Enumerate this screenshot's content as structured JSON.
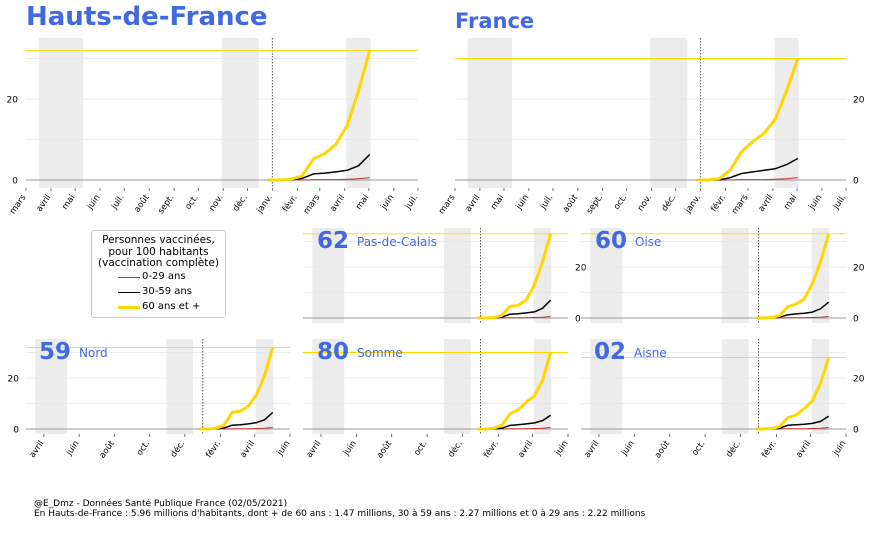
{
  "footer": {
    "line1": "@E_Dmz - Données Santé Publique France (02/05/2021)",
    "line2": "En Hauts-de-France : 5.96 millions d'habitants, dont + de 60 ans : 1.47 millions, 30 à 59 ans : 2.27 millions et 0 à 29 ans : 2.22 millions"
  },
  "legend": {
    "title_lines": [
      "Personnes vaccinées,",
      "pour 100 habitants",
      "(vaccination complète)"
    ],
    "entries": [
      "0-29 ans",
      "30-59 ans",
      "60 ans et +"
    ]
  },
  "colors": {
    "title": "#4169e1",
    "age_0_29": "#c0392b",
    "age_30_59": "#000000",
    "age_60_plus": "#ffd700",
    "shade": "#ececec",
    "grid": "#e6e6e6"
  },
  "chart_data": [
    {
      "type": "line",
      "panel": "hauts-de-france",
      "title": "Hauts-de-France",
      "x_ticks": [
        "mars",
        "avril",
        "mai",
        "juin",
        "juil.",
        "août",
        "sept.",
        "oct.",
        "nov.",
        "déc.",
        "janv.",
        "févr.",
        "mars",
        "avril",
        "mai",
        "juin",
        "juil."
      ],
      "y_ticks": [
        0,
        20
      ],
      "ylim": [
        -2,
        35
      ],
      "xlim": [
        "2020-03-01",
        "2021-07-01"
      ],
      "grid": true,
      "axis": "right-hidden",
      "dates": [
        "2020-12-27",
        "2021-01-10",
        "2021-01-24",
        "2021-02-07",
        "2021-02-21",
        "2021-03-07",
        "2021-03-21",
        "2021-04-04",
        "2021-04-18",
        "2021-05-02"
      ],
      "series": [
        {
          "name": "0-29 ans",
          "values": [
            0,
            0,
            0,
            0,
            0.1,
            0.1,
            0.1,
            0.2,
            0.3,
            0.6
          ]
        },
        {
          "name": "30-59 ans",
          "values": [
            0,
            0,
            0,
            0.4,
            1.5,
            1.7,
            2.0,
            2.4,
            3.5,
            6.3
          ]
        },
        {
          "name": "60 ans et +",
          "values": [
            0,
            0,
            0.2,
            1.0,
            5.2,
            6.5,
            8.8,
            13.5,
            22,
            32
          ]
        }
      ],
      "reference_y": 32,
      "marker_date": "2021-01-01",
      "shaded": [
        [
          "2020-03-17",
          "2020-05-11"
        ],
        [
          "2020-10-30",
          "2020-12-15"
        ],
        [
          "2021-04-03",
          "2021-05-03"
        ]
      ]
    },
    {
      "type": "line",
      "panel": "france",
      "title": "France",
      "x_ticks": [
        "mars",
        "avril",
        "mai",
        "juin",
        "juil.",
        "août",
        "sept.",
        "oct.",
        "nov.",
        "déc.",
        "janv.",
        "févr.",
        "mars",
        "avril",
        "mai",
        "juin",
        "juil."
      ],
      "y_ticks": [
        0,
        20
      ],
      "ylim": [
        -2,
        35
      ],
      "xlim": [
        "2020-03-01",
        "2021-07-01"
      ],
      "grid": true,
      "axis": "right",
      "dates": [
        "2020-12-27",
        "2021-01-10",
        "2021-01-24",
        "2021-02-07",
        "2021-02-21",
        "2021-03-07",
        "2021-03-21",
        "2021-04-04",
        "2021-04-18",
        "2021-05-02"
      ],
      "series": [
        {
          "name": "0-29 ans",
          "values": [
            0,
            0,
            0,
            0,
            0.1,
            0.1,
            0.1,
            0.2,
            0.3,
            0.6
          ]
        },
        {
          "name": "30-59 ans",
          "values": [
            0,
            0,
            0,
            0.6,
            1.6,
            2.0,
            2.4,
            2.8,
            3.8,
            5.3
          ]
        },
        {
          "name": "60 ans et +",
          "values": [
            0,
            0,
            0.3,
            2.5,
            7.0,
            9.5,
            11.5,
            15.0,
            22,
            30
          ]
        }
      ],
      "reference_y": 30,
      "marker_date": "2021-01-01",
      "shaded": [
        [
          "2020-03-17",
          "2020-05-11"
        ],
        [
          "2020-10-30",
          "2020-12-15"
        ],
        [
          "2021-04-03",
          "2021-05-03"
        ]
      ]
    },
    {
      "type": "line",
      "panel": "dep-62",
      "number": "62",
      "name": "Pas-de-Calais",
      "x_ticks": [],
      "y_ticks": [
        0,
        20
      ],
      "ylim": [
        -2,
        35
      ],
      "xlim": [
        "2020-03-01",
        "2021-06-01"
      ],
      "grid": true,
      "axis": "right",
      "dates": [
        "2020-12-27",
        "2021-01-10",
        "2021-01-24",
        "2021-02-07",
        "2021-02-21",
        "2021-03-07",
        "2021-03-21",
        "2021-04-04",
        "2021-04-18",
        "2021-05-02"
      ],
      "series": [
        {
          "name": "0-29 ans",
          "values": [
            0,
            0,
            0,
            0,
            0.1,
            0.1,
            0.1,
            0.2,
            0.3,
            0.6
          ]
        },
        {
          "name": "30-59 ans",
          "values": [
            0,
            0,
            0,
            0.3,
            1.5,
            1.7,
            2.0,
            2.4,
            3.8,
            7.0
          ]
        },
        {
          "name": "60 ans et +",
          "values": [
            0,
            0,
            0.2,
            1.0,
            4.5,
            5.0,
            7.0,
            13.0,
            22,
            33
          ]
        }
      ],
      "reference_y": 33,
      "marker_date": "2021-01-01",
      "shaded": [
        [
          "2020-03-17",
          "2020-05-11"
        ],
        [
          "2020-10-30",
          "2020-12-15"
        ],
        [
          "2021-04-03",
          "2021-05-03"
        ]
      ]
    },
    {
      "type": "line",
      "panel": "dep-60",
      "number": "60",
      "name": "Oise",
      "x_ticks": [],
      "y_ticks": [
        0,
        20
      ],
      "ylim": [
        -2,
        35
      ],
      "xlim": [
        "2020-03-01",
        "2021-06-01"
      ],
      "grid": true,
      "axis": "right",
      "dates": [
        "2020-12-27",
        "2021-01-10",
        "2021-01-24",
        "2021-02-07",
        "2021-02-21",
        "2021-03-07",
        "2021-03-21",
        "2021-04-04",
        "2021-04-18",
        "2021-05-02"
      ],
      "series": [
        {
          "name": "0-29 ans",
          "values": [
            0,
            0,
            0,
            0,
            0.1,
            0.1,
            0.1,
            0.2,
            0.3,
            0.6
          ]
        },
        {
          "name": "30-59 ans",
          "values": [
            0,
            0,
            0,
            0.3,
            1.3,
            1.6,
            1.9,
            2.3,
            3.6,
            6.2
          ]
        },
        {
          "name": "60 ans et +",
          "values": [
            0,
            0,
            0.2,
            1.0,
            4.5,
            5.5,
            7.5,
            13.5,
            22,
            33
          ]
        }
      ],
      "reference_y": 33,
      "marker_date": "2021-01-01",
      "shaded": [
        [
          "2020-03-17",
          "2020-05-11"
        ],
        [
          "2020-10-30",
          "2020-12-15"
        ],
        [
          "2021-04-03",
          "2021-05-03"
        ]
      ]
    },
    {
      "type": "line",
      "panel": "dep-59",
      "number": "59",
      "name": "Nord",
      "x_ticks": [
        "avril",
        "juin",
        "août",
        "oct.",
        "déc.",
        "févr.",
        "avril",
        "juin"
      ],
      "y_ticks": [
        0,
        20
      ],
      "ylim": [
        -2,
        35
      ],
      "xlim": [
        "2020-03-01",
        "2021-06-01"
      ],
      "grid": true,
      "axis": "left",
      "dates": [
        "2020-12-27",
        "2021-01-10",
        "2021-01-24",
        "2021-02-07",
        "2021-02-21",
        "2021-03-07",
        "2021-03-21",
        "2021-04-04",
        "2021-04-18",
        "2021-05-02"
      ],
      "series": [
        {
          "name": "0-29 ans",
          "values": [
            0,
            0,
            0,
            0,
            0.1,
            0.1,
            0.1,
            0.2,
            0.3,
            0.6
          ]
        },
        {
          "name": "30-59 ans",
          "values": [
            0,
            0,
            0,
            0.4,
            1.5,
            1.7,
            2.0,
            2.5,
            3.6,
            6.5
          ]
        },
        {
          "name": "60 ans et +",
          "values": [
            0,
            0,
            0.3,
            1.5,
            6.5,
            7.0,
            9.0,
            13.5,
            21,
            32
          ]
        }
      ],
      "reference_y": 32,
      "marker_date": "2021-01-01",
      "shaded": [
        [
          "2020-03-17",
          "2020-05-11"
        ],
        [
          "2020-10-30",
          "2020-12-15"
        ],
        [
          "2021-04-03",
          "2021-05-03"
        ]
      ]
    },
    {
      "type": "line",
      "panel": "dep-80",
      "number": "80",
      "name": "Somme",
      "x_ticks": [
        "avril",
        "juin",
        "août",
        "oct.",
        "déc.",
        "févr.",
        "avril",
        "juin"
      ],
      "y_ticks": [
        0,
        20
      ],
      "ylim": [
        -2,
        35
      ],
      "xlim": [
        "2020-03-01",
        "2021-06-01"
      ],
      "grid": true,
      "axis": "none",
      "dates": [
        "2020-12-27",
        "2021-01-10",
        "2021-01-24",
        "2021-02-07",
        "2021-02-21",
        "2021-03-07",
        "2021-03-21",
        "2021-04-04",
        "2021-04-18",
        "2021-05-02"
      ],
      "series": [
        {
          "name": "0-29 ans",
          "values": [
            0,
            0,
            0,
            0,
            0.1,
            0.1,
            0.1,
            0.2,
            0.3,
            0.6
          ]
        },
        {
          "name": "30-59 ans",
          "values": [
            0,
            0,
            0,
            0.3,
            1.4,
            1.7,
            2.0,
            2.4,
            3.3,
            5.4
          ]
        },
        {
          "name": "60 ans et +",
          "values": [
            0,
            0,
            0.3,
            1.5,
            6.0,
            7.5,
            10.5,
            13.0,
            19,
            30
          ]
        }
      ],
      "reference_y": 30,
      "marker_date": "2021-01-01",
      "shaded": [
        [
          "2020-03-17",
          "2020-05-11"
        ],
        [
          "2020-10-30",
          "2020-12-15"
        ],
        [
          "2021-04-03",
          "2021-05-03"
        ]
      ]
    },
    {
      "type": "line",
      "panel": "dep-02",
      "number": "02",
      "name": "Aisne",
      "x_ticks": [
        "avril",
        "juin",
        "août",
        "oct.",
        "déc.",
        "févr.",
        "avril",
        "juin"
      ],
      "y_ticks": [
        0,
        20
      ],
      "ylim": [
        -2,
        35
      ],
      "xlim": [
        "2020-03-01",
        "2021-06-01"
      ],
      "grid": true,
      "axis": "right",
      "dates": [
        "2020-12-27",
        "2021-01-10",
        "2021-01-24",
        "2021-02-07",
        "2021-02-21",
        "2021-03-07",
        "2021-03-21",
        "2021-04-04",
        "2021-04-18",
        "2021-05-02"
      ],
      "series": [
        {
          "name": "0-29 ans",
          "values": [
            0,
            0,
            0,
            0,
            0.1,
            0.1,
            0.1,
            0.2,
            0.3,
            0.6
          ]
        },
        {
          "name": "30-59 ans",
          "values": [
            0,
            0,
            0,
            0.3,
            1.5,
            1.7,
            1.9,
            2.2,
            3.0,
            5.0
          ]
        },
        {
          "name": "60 ans et +",
          "values": [
            0,
            0,
            0.2,
            1.0,
            4.5,
            5.5,
            8.0,
            11.0,
            18,
            28
          ]
        }
      ],
      "reference_y": 28,
      "marker_date": "2021-01-01",
      "shaded": [
        [
          "2020-03-17",
          "2020-05-11"
        ],
        [
          "2020-10-30",
          "2020-12-15"
        ],
        [
          "2021-04-03",
          "2021-05-03"
        ]
      ]
    }
  ]
}
